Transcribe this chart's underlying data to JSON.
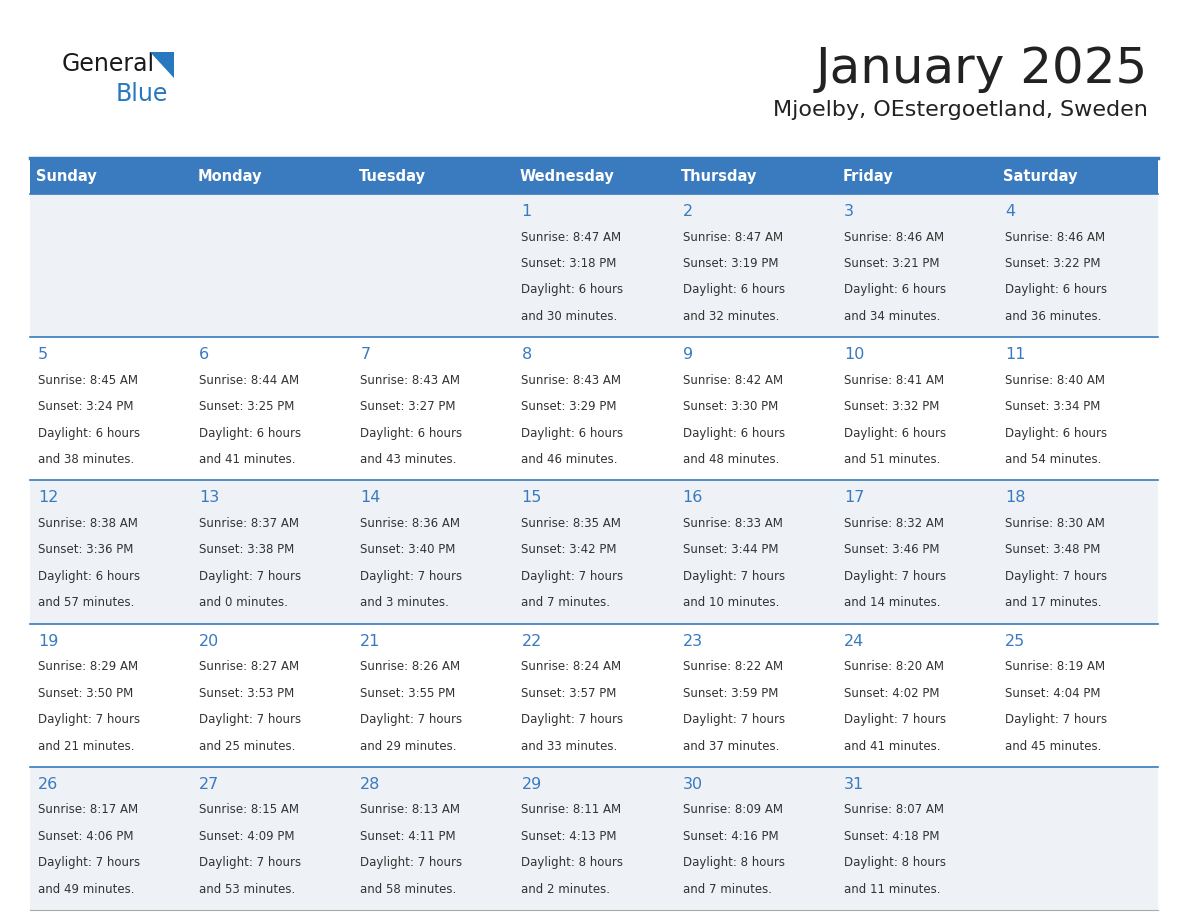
{
  "title": "January 2025",
  "subtitle": "Mjoelby, OEstergoetland, Sweden",
  "header_bg_color": "#3a7abf",
  "header_text_color": "#ffffff",
  "row_bg_light": "#eef2f7",
  "row_bg_white": "#ffffff",
  "day_names": [
    "Sunday",
    "Monday",
    "Tuesday",
    "Wednesday",
    "Thursday",
    "Friday",
    "Saturday"
  ],
  "title_color": "#222222",
  "subtitle_color": "#222222",
  "day_number_color": "#3a7abf",
  "cell_text_color": "#333333",
  "divider_color": "#3a7abf",
  "logo_general_color": "#1a1a1a",
  "logo_blue_color": "#2878c0",
  "logo_triangle_color": "#2878c0",
  "calendar_data": [
    [
      {
        "day": "",
        "sunrise": "",
        "sunset": "",
        "daylight": ""
      },
      {
        "day": "",
        "sunrise": "",
        "sunset": "",
        "daylight": ""
      },
      {
        "day": "",
        "sunrise": "",
        "sunset": "",
        "daylight": ""
      },
      {
        "day": "1",
        "sunrise": "8:47 AM",
        "sunset": "3:18 PM",
        "daylight": "6 hours and 30 minutes."
      },
      {
        "day": "2",
        "sunrise": "8:47 AM",
        "sunset": "3:19 PM",
        "daylight": "6 hours and 32 minutes."
      },
      {
        "day": "3",
        "sunrise": "8:46 AM",
        "sunset": "3:21 PM",
        "daylight": "6 hours and 34 minutes."
      },
      {
        "day": "4",
        "sunrise": "8:46 AM",
        "sunset": "3:22 PM",
        "daylight": "6 hours and 36 minutes."
      }
    ],
    [
      {
        "day": "5",
        "sunrise": "8:45 AM",
        "sunset": "3:24 PM",
        "daylight": "6 hours and 38 minutes."
      },
      {
        "day": "6",
        "sunrise": "8:44 AM",
        "sunset": "3:25 PM",
        "daylight": "6 hours and 41 minutes."
      },
      {
        "day": "7",
        "sunrise": "8:43 AM",
        "sunset": "3:27 PM",
        "daylight": "6 hours and 43 minutes."
      },
      {
        "day": "8",
        "sunrise": "8:43 AM",
        "sunset": "3:29 PM",
        "daylight": "6 hours and 46 minutes."
      },
      {
        "day": "9",
        "sunrise": "8:42 AM",
        "sunset": "3:30 PM",
        "daylight": "6 hours and 48 minutes."
      },
      {
        "day": "10",
        "sunrise": "8:41 AM",
        "sunset": "3:32 PM",
        "daylight": "6 hours and 51 minutes."
      },
      {
        "day": "11",
        "sunrise": "8:40 AM",
        "sunset": "3:34 PM",
        "daylight": "6 hours and 54 minutes."
      }
    ],
    [
      {
        "day": "12",
        "sunrise": "8:38 AM",
        "sunset": "3:36 PM",
        "daylight": "6 hours and 57 minutes."
      },
      {
        "day": "13",
        "sunrise": "8:37 AM",
        "sunset": "3:38 PM",
        "daylight": "7 hours and 0 minutes."
      },
      {
        "day": "14",
        "sunrise": "8:36 AM",
        "sunset": "3:40 PM",
        "daylight": "7 hours and 3 minutes."
      },
      {
        "day": "15",
        "sunrise": "8:35 AM",
        "sunset": "3:42 PM",
        "daylight": "7 hours and 7 minutes."
      },
      {
        "day": "16",
        "sunrise": "8:33 AM",
        "sunset": "3:44 PM",
        "daylight": "7 hours and 10 minutes."
      },
      {
        "day": "17",
        "sunrise": "8:32 AM",
        "sunset": "3:46 PM",
        "daylight": "7 hours and 14 minutes."
      },
      {
        "day": "18",
        "sunrise": "8:30 AM",
        "sunset": "3:48 PM",
        "daylight": "7 hours and 17 minutes."
      }
    ],
    [
      {
        "day": "19",
        "sunrise": "8:29 AM",
        "sunset": "3:50 PM",
        "daylight": "7 hours and 21 minutes."
      },
      {
        "day": "20",
        "sunrise": "8:27 AM",
        "sunset": "3:53 PM",
        "daylight": "7 hours and 25 minutes."
      },
      {
        "day": "21",
        "sunrise": "8:26 AM",
        "sunset": "3:55 PM",
        "daylight": "7 hours and 29 minutes."
      },
      {
        "day": "22",
        "sunrise": "8:24 AM",
        "sunset": "3:57 PM",
        "daylight": "7 hours and 33 minutes."
      },
      {
        "day": "23",
        "sunrise": "8:22 AM",
        "sunset": "3:59 PM",
        "daylight": "7 hours and 37 minutes."
      },
      {
        "day": "24",
        "sunrise": "8:20 AM",
        "sunset": "4:02 PM",
        "daylight": "7 hours and 41 minutes."
      },
      {
        "day": "25",
        "sunrise": "8:19 AM",
        "sunset": "4:04 PM",
        "daylight": "7 hours and 45 minutes."
      }
    ],
    [
      {
        "day": "26",
        "sunrise": "8:17 AM",
        "sunset": "4:06 PM",
        "daylight": "7 hours and 49 minutes."
      },
      {
        "day": "27",
        "sunrise": "8:15 AM",
        "sunset": "4:09 PM",
        "daylight": "7 hours and 53 minutes."
      },
      {
        "day": "28",
        "sunrise": "8:13 AM",
        "sunset": "4:11 PM",
        "daylight": "7 hours and 58 minutes."
      },
      {
        "day": "29",
        "sunrise": "8:11 AM",
        "sunset": "4:13 PM",
        "daylight": "8 hours and 2 minutes."
      },
      {
        "day": "30",
        "sunrise": "8:09 AM",
        "sunset": "4:16 PM",
        "daylight": "8 hours and 7 minutes."
      },
      {
        "day": "31",
        "sunrise": "8:07 AM",
        "sunset": "4:18 PM",
        "daylight": "8 hours and 11 minutes."
      },
      {
        "day": "",
        "sunrise": "",
        "sunset": "",
        "daylight": ""
      }
    ]
  ]
}
